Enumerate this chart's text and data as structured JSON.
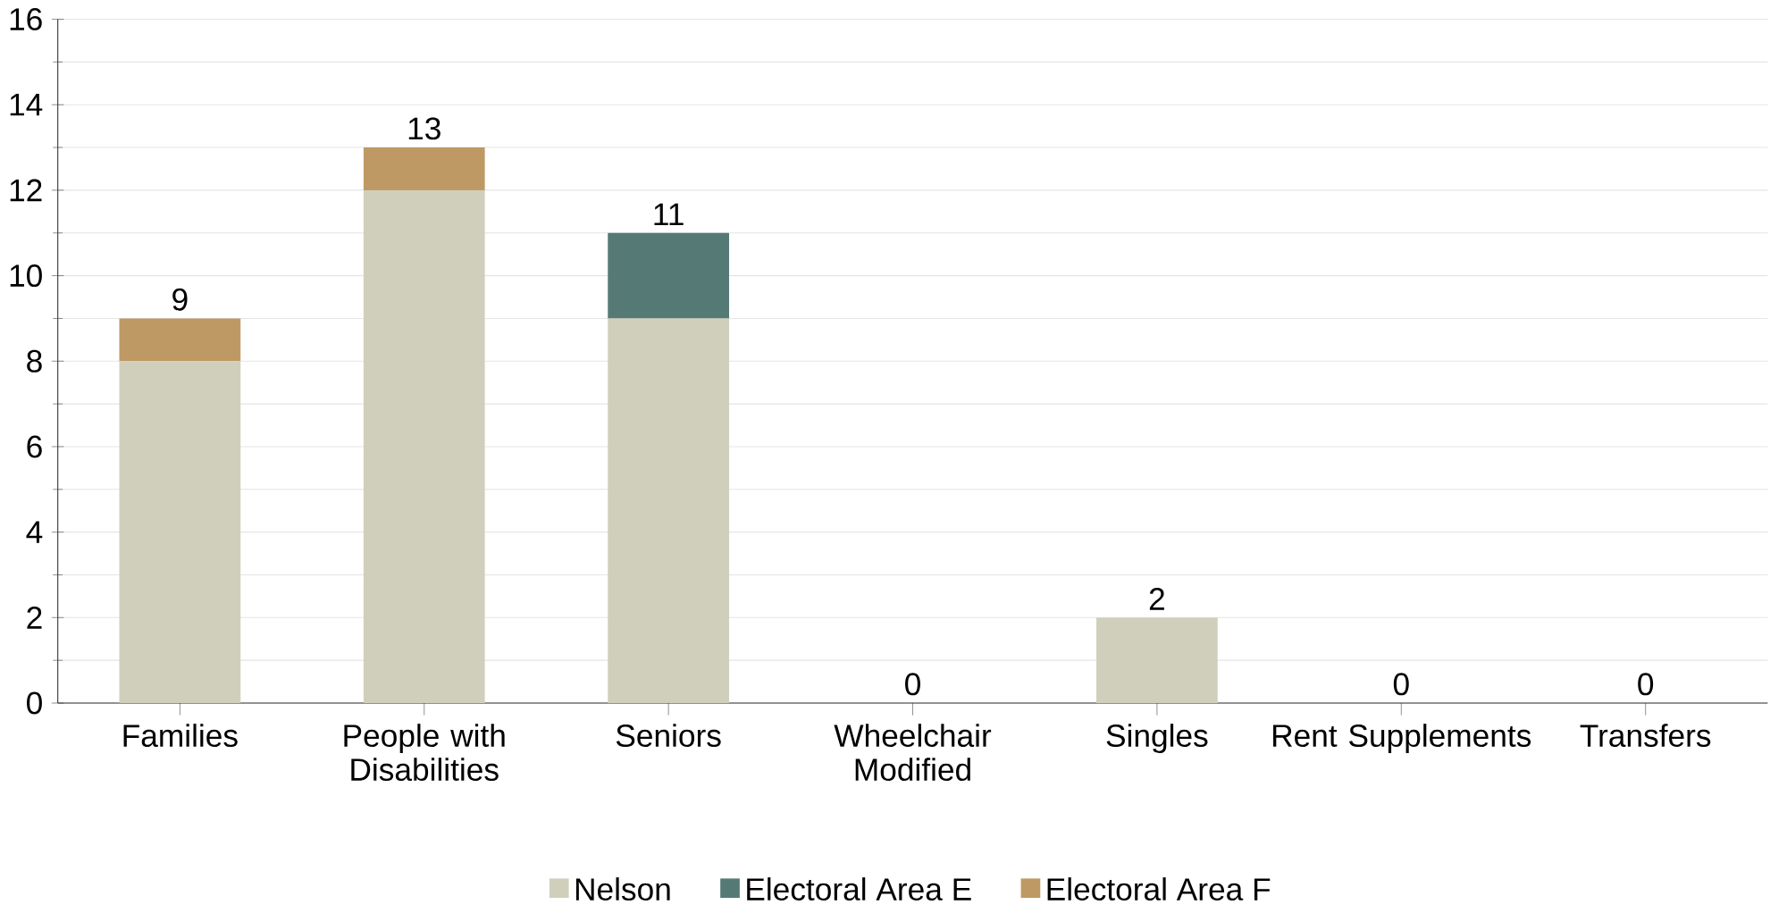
{
  "chart_data": {
    "type": "bar",
    "stacked": true,
    "categories": [
      "Families",
      "People with Disabilities",
      "Seniors",
      "Wheelchair Modified",
      "Singles",
      "Rent Supplements",
      "Transfers"
    ],
    "series": [
      {
        "name": "Nelson",
        "color": "#d0cfbb",
        "values": [
          8,
          12,
          9,
          0,
          2,
          0,
          0
        ]
      },
      {
        "name": "Electoral Area E",
        "color": "#557a76",
        "values": [
          0,
          0,
          2,
          0,
          0,
          0,
          0
        ]
      },
      {
        "name": "Electoral Area F",
        "color": "#bf9964",
        "values": [
          1,
          1,
          0,
          0,
          0,
          0,
          0
        ]
      }
    ],
    "totals": [
      "9",
      "13",
      "11",
      "0",
      "2",
      "0",
      "0"
    ],
    "ylim": [
      0,
      16
    ],
    "yticks": [
      0,
      2,
      4,
      6,
      8,
      10,
      12,
      14,
      16
    ],
    "grid": "y",
    "legend": "bottom"
  }
}
